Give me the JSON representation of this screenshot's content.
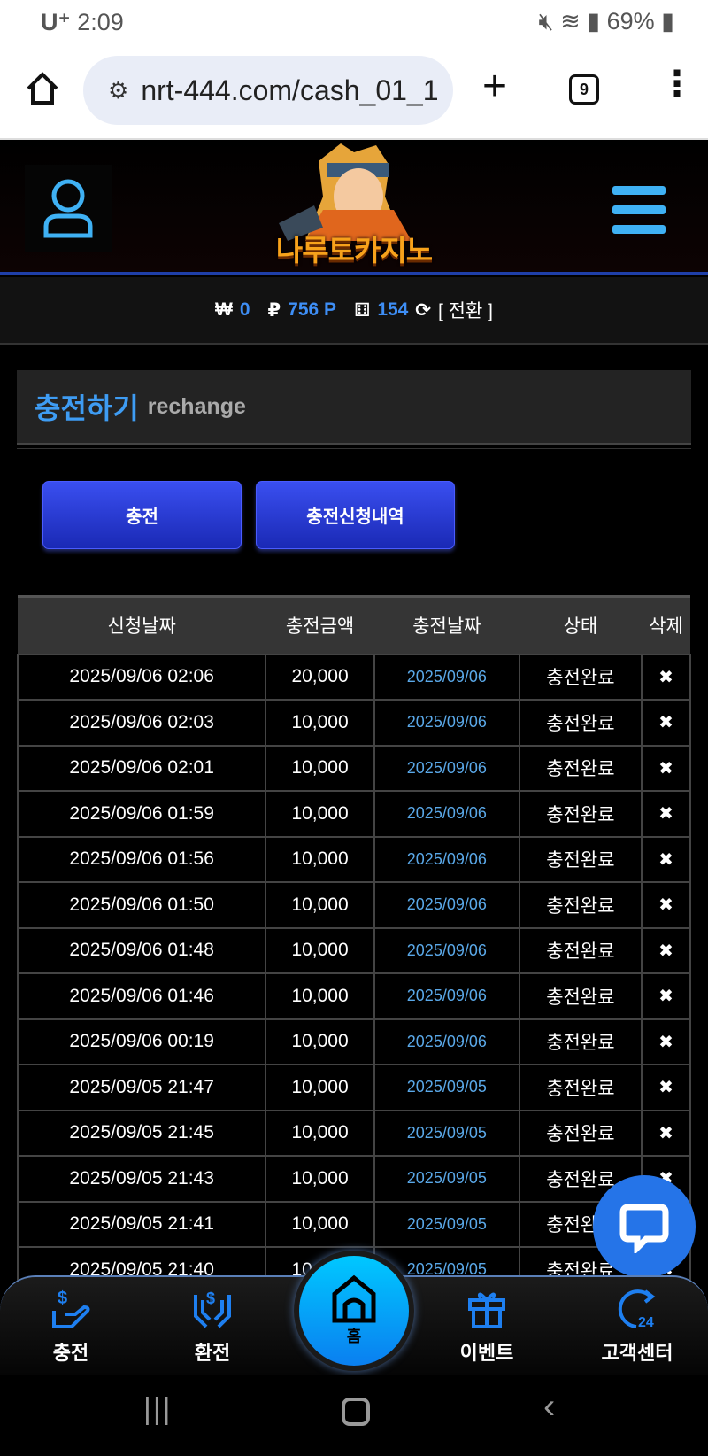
{
  "status_bar": {
    "carrier": "U⁺",
    "time": "2:09",
    "battery": "69%"
  },
  "browser": {
    "url": "nrt-444.com/cash_01_1",
    "tab_count": "9"
  },
  "header": {
    "logo_text": "나루토카지노"
  },
  "balance": {
    "won_symbol": "₩",
    "won": "0",
    "point_symbol": "₽",
    "points": "756 P",
    "chips": "154",
    "convert_label": "[ 전환 ]"
  },
  "page_title": {
    "korean": "충전하기",
    "english": "rechange"
  },
  "buttons": {
    "charge": "충전",
    "history": "충전신청내역"
  },
  "table": {
    "headers": [
      "신청날짜",
      "충전금액",
      "충전날짜",
      "상태",
      "삭제"
    ],
    "rows": [
      [
        "2025/09/06 02:06",
        "20,000",
        "2025/09/06",
        "충전완료",
        "✖"
      ],
      [
        "2025/09/06 02:03",
        "10,000",
        "2025/09/06",
        "충전완료",
        "✖"
      ],
      [
        "2025/09/06 02:01",
        "10,000",
        "2025/09/06",
        "충전완료",
        "✖"
      ],
      [
        "2025/09/06 01:59",
        "10,000",
        "2025/09/06",
        "충전완료",
        "✖"
      ],
      [
        "2025/09/06 01:56",
        "10,000",
        "2025/09/06",
        "충전완료",
        "✖"
      ],
      [
        "2025/09/06 01:50",
        "10,000",
        "2025/09/06",
        "충전완료",
        "✖"
      ],
      [
        "2025/09/06 01:48",
        "10,000",
        "2025/09/06",
        "충전완료",
        "✖"
      ],
      [
        "2025/09/06 01:46",
        "10,000",
        "2025/09/06",
        "충전완료",
        "✖"
      ],
      [
        "2025/09/06 00:19",
        "10,000",
        "2025/09/06",
        "충전완료",
        "✖"
      ],
      [
        "2025/09/05 21:47",
        "10,000",
        "2025/09/05",
        "충전완료",
        "✖"
      ],
      [
        "2025/09/05 21:45",
        "10,000",
        "2025/09/05",
        "충전완료",
        "✖"
      ],
      [
        "2025/09/05 21:43",
        "10,000",
        "2025/09/05",
        "충전완료",
        "✖"
      ],
      [
        "2025/09/05 21:41",
        "10,000",
        "2025/09/05",
        "충전완료",
        "✖"
      ],
      [
        "2025/09/05 21:40",
        "10,000",
        "2025/09/05",
        "충전완료",
        "✖"
      ]
    ]
  },
  "bottom_nav": {
    "charge": "충전",
    "exchange": "환전",
    "home": "홈",
    "event": "이벤트",
    "support": "고객센터"
  },
  "colors": {
    "accent": "#3e8ef5",
    "button": "#2a3cd8",
    "menu": "#3fb1f4"
  }
}
